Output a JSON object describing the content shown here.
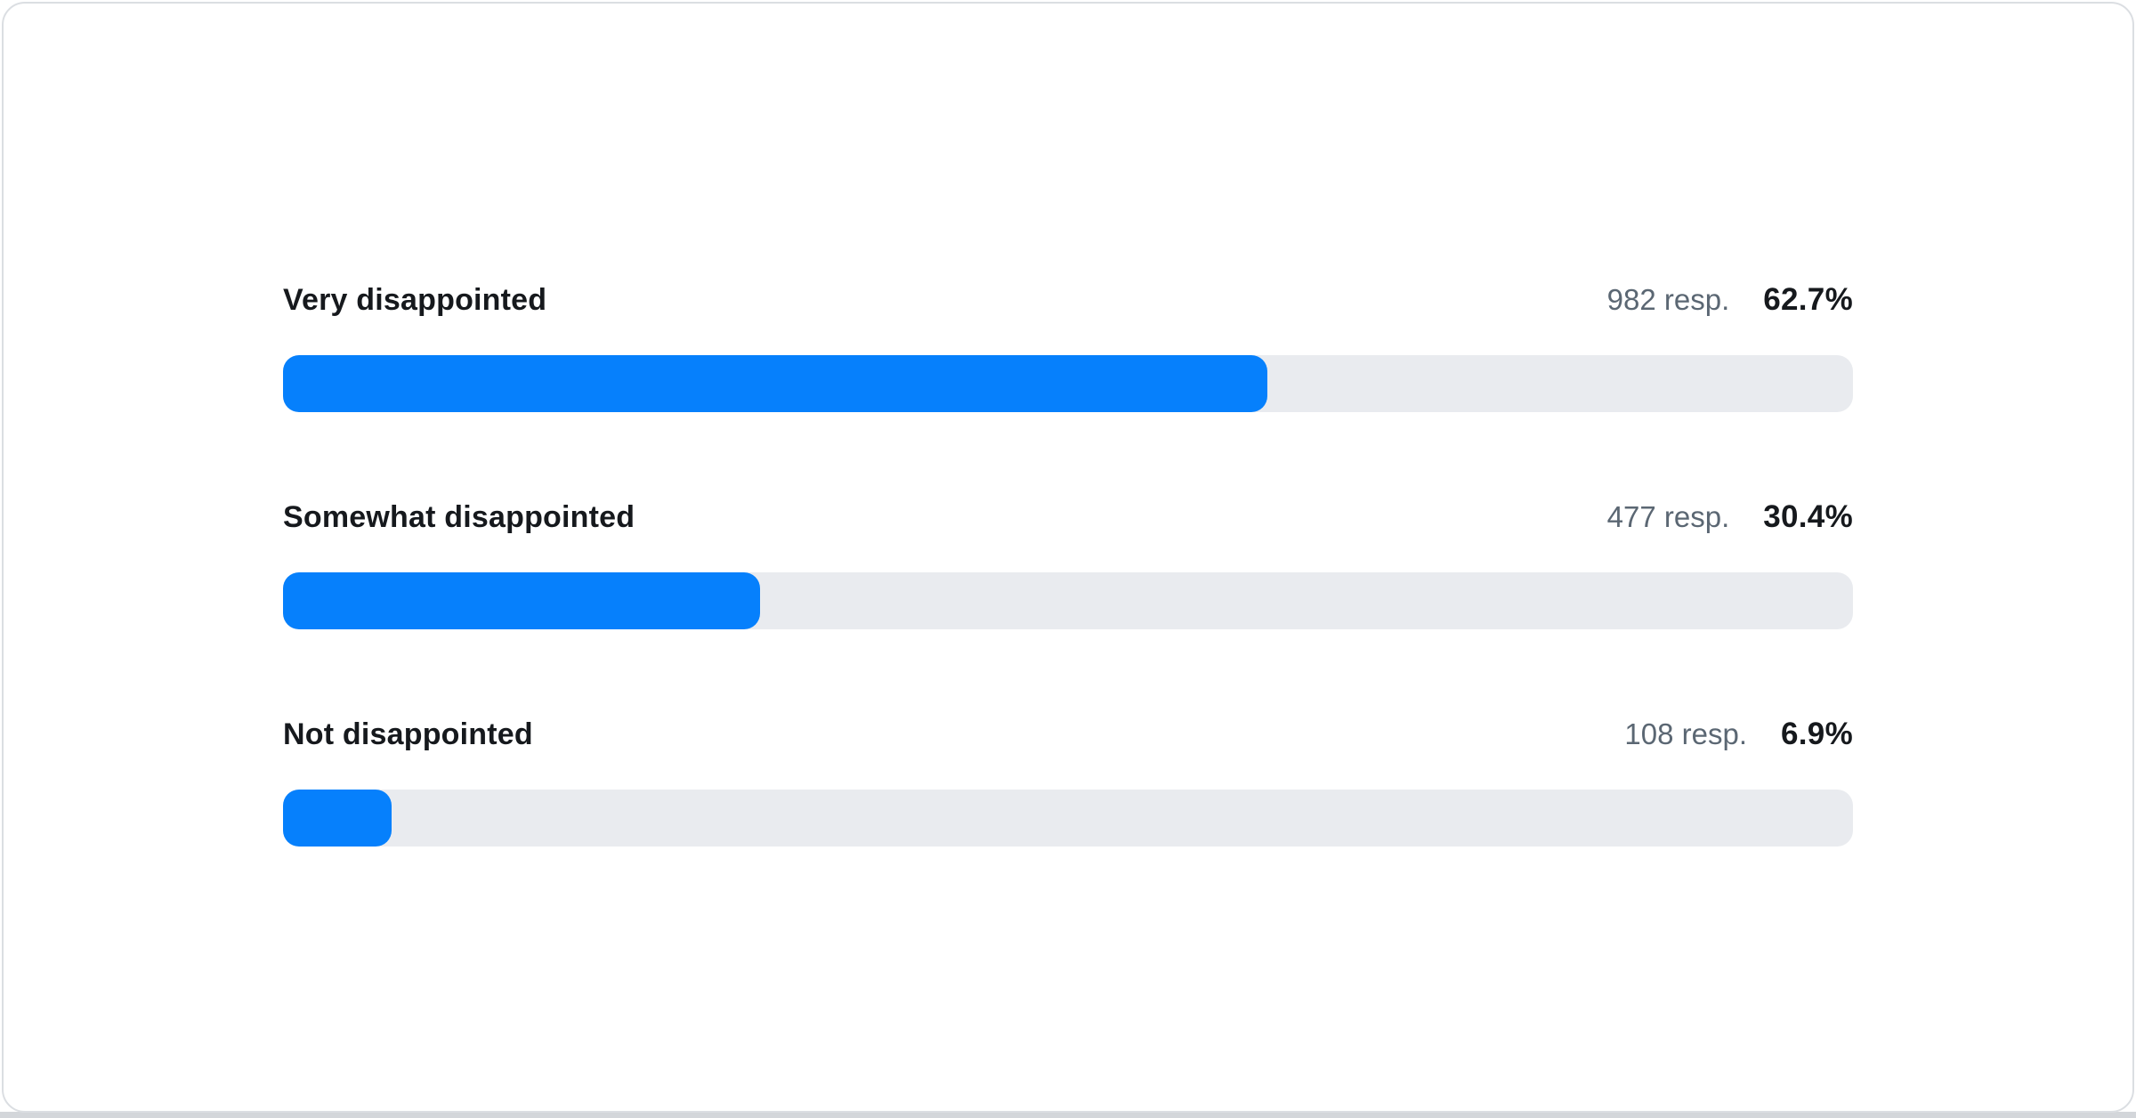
{
  "chart_data": {
    "type": "bar",
    "orientation": "horizontal",
    "title": "",
    "categories": [
      "Very disappointed",
      "Somewhat disappointed",
      "Not disappointed"
    ],
    "series": [
      {
        "name": "Responses",
        "values": [
          982,
          477,
          108
        ]
      },
      {
        "name": "Percent",
        "values": [
          62.7,
          30.4,
          6.9
        ]
      }
    ],
    "value_suffix": "%",
    "xlim": [
      0,
      100
    ],
    "grid": false,
    "legend": false
  },
  "rows": [
    {
      "label": "Very disappointed",
      "responses": "982 resp.",
      "percent_label": "62.7%",
      "percent": 62.7
    },
    {
      "label": "Somewhat disappointed",
      "responses": "477 resp.",
      "percent_label": "30.4%",
      "percent": 30.4
    },
    {
      "label": "Not disappointed",
      "responses": "108 resp.",
      "percent_label": "6.9%",
      "percent": 6.9
    }
  ],
  "colors": {
    "bar_fill": "#0680FC",
    "bar_track": "#E9EBEF",
    "label_text": "#16191D",
    "percent_text": "#16191D",
    "responses_text": "#5B6773",
    "card_background": "#FFFFFF",
    "card_border": "#DBDEE2",
    "page_edge": "#D3D6DA"
  }
}
